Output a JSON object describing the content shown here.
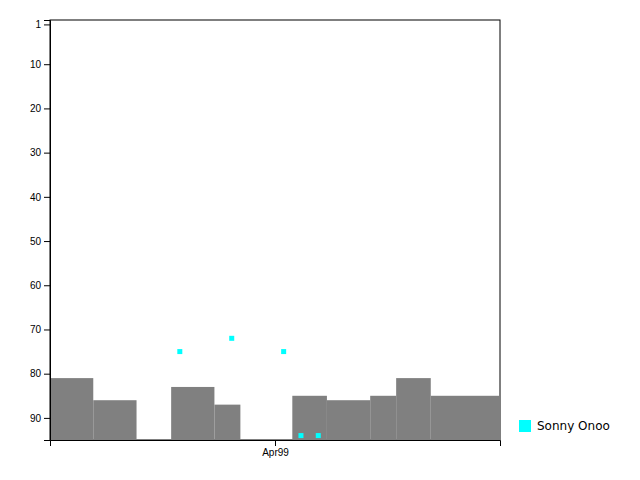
{
  "chart_data": {
    "type": "scatter",
    "xlim": [
      0,
      26
    ],
    "xticks": [
      {
        "value": 13,
        "label": "Apr99"
      }
    ],
    "ylim": [
      95,
      0
    ],
    "yticks": [
      1,
      10,
      20,
      30,
      40,
      50,
      60,
      70,
      80,
      90
    ],
    "legend": "lower right",
    "series": [
      {
        "type": "bar",
        "color": "#808080",
        "x_start": [
          0,
          2.5,
          7.0,
          9.5,
          14.0,
          16.0,
          18.5,
          20.0,
          22.0
        ],
        "x_end": [
          2.5,
          5.0,
          9.5,
          11.0,
          16.0,
          18.5,
          20.0,
          22.0,
          26.0
        ],
        "values": [
          81,
          86,
          83,
          87,
          85,
          86,
          85,
          81,
          85
        ]
      },
      {
        "name": "Sonny Onoo",
        "type": "scatter",
        "color": "#00ffff",
        "marker": "square",
        "x": [
          7.5,
          10.5,
          13.5,
          14.5,
          15.5
        ],
        "values": [
          75,
          72,
          75,
          94,
          94
        ]
      }
    ]
  }
}
